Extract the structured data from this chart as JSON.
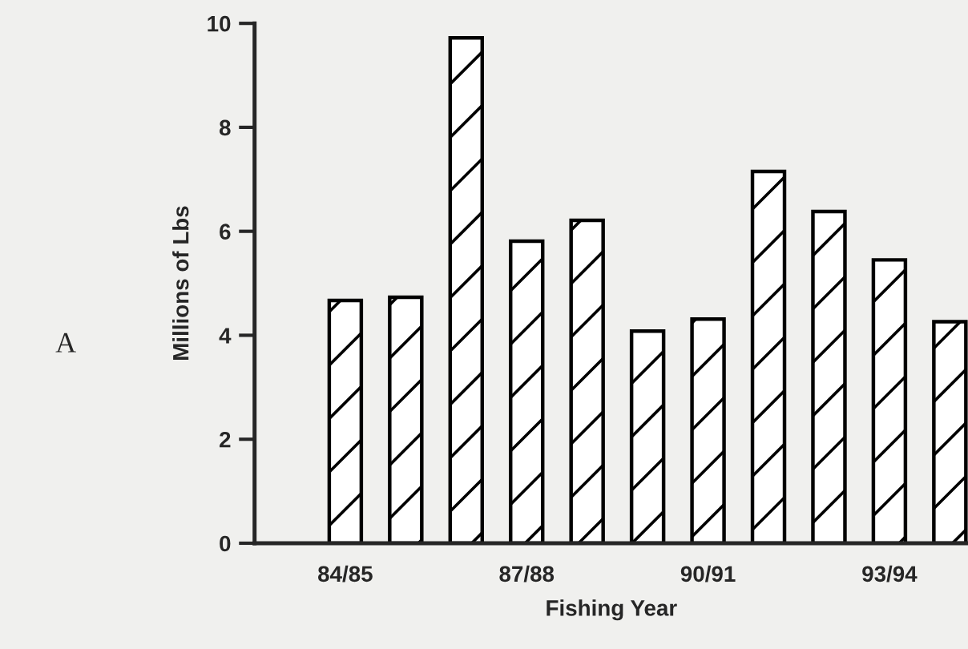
{
  "chart_data": {
    "type": "bar",
    "xlabel": "Fishing Year",
    "ylabel": "Millions of Lbs",
    "categories": [
      "84/85",
      null,
      null,
      "87/88",
      null,
      null,
      "90/91",
      null,
      null,
      "93/94",
      null
    ],
    "values": [
      4.67,
      4.73,
      9.72,
      5.81,
      6.21,
      4.08,
      4.31,
      7.15,
      6.38,
      5.45,
      4.26
    ],
    "color": "#000000",
    "ylim": [
      0,
      10
    ],
    "yticks": [
      0,
      2,
      4,
      6,
      8,
      10
    ],
    "grid": false,
    "legend": false,
    "annotations": [
      "A"
    ]
  }
}
